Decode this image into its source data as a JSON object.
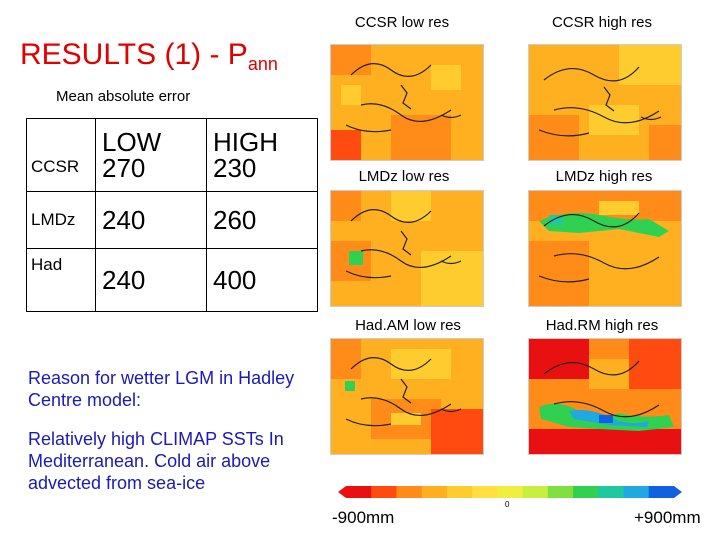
{
  "title": {
    "main": "RESULTS (1) - P",
    "subscript": "ann"
  },
  "subtitle": "Mean absolute error",
  "table": {
    "columns": [
      "LOW",
      "HIGH"
    ],
    "rows": [
      {
        "label": "CCSR",
        "low": "270",
        "high": "230"
      },
      {
        "label": "LMDz",
        "low": "240",
        "high": "260"
      },
      {
        "label": "Had",
        "low": "240",
        "high": "400"
      }
    ]
  },
  "notes": {
    "reason": "Reason for wetter LGM in Hadley Centre model:",
    "explanation": "Relatively high CLIMAP SSTs In Mediterranean. Cold air above advected from sea-ice"
  },
  "maps": [
    {
      "label": "CCSR low res"
    },
    {
      "label": "CCSR high res"
    },
    {
      "label": "LMDz low res"
    },
    {
      "label": "LMDz high res"
    },
    {
      "label": "Had.AM low res"
    },
    {
      "label": "Had.RM high res"
    }
  ],
  "colorbar": {
    "min_label": "-900mm",
    "zero_label": "0",
    "max_label": "+900mm",
    "colors": [
      "#e81010",
      "#ff4a10",
      "#ff8c18",
      "#ffb020",
      "#ffcc30",
      "#ffe040",
      "#f0ee40",
      "#c8ee40",
      "#80e040",
      "#30d050",
      "#20c8a0",
      "#20a8e0",
      "#1060e0"
    ]
  }
}
